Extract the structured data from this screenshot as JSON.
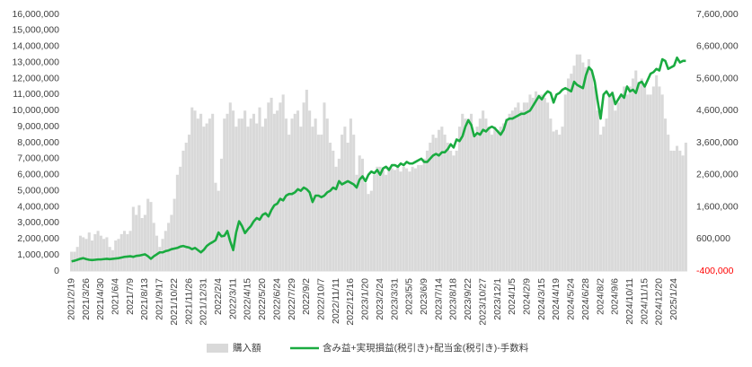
{
  "chart_data": {
    "type": "bar_line",
    "categories": [
      "2021/2/19",
      null,
      null,
      null,
      null,
      "2021/3/26",
      null,
      null,
      null,
      null,
      "2021/4/30",
      null,
      null,
      null,
      null,
      "2021/6/4",
      null,
      null,
      null,
      null,
      "2021/7/9",
      null,
      null,
      null,
      null,
      "2021/8/13",
      null,
      null,
      null,
      null,
      "2021/9/17",
      null,
      null,
      null,
      null,
      "2021/10/22",
      null,
      null,
      null,
      null,
      "2021/11/26",
      null,
      null,
      null,
      null,
      "2021/12/31",
      null,
      null,
      null,
      null,
      "2022/2/4",
      null,
      null,
      null,
      null,
      "2022/3/11",
      null,
      null,
      null,
      null,
      "2022/4/15",
      null,
      null,
      null,
      null,
      "2022/5/20",
      null,
      null,
      null,
      null,
      "2022/6/24",
      null,
      null,
      null,
      null,
      "2022/7/29",
      null,
      null,
      null,
      null,
      "2022/9/2",
      null,
      null,
      null,
      null,
      "2022/10/7",
      null,
      null,
      null,
      null,
      "2022/11/11",
      null,
      null,
      null,
      null,
      "2022/12/16",
      null,
      null,
      null,
      null,
      "2023/1/20",
      null,
      null,
      null,
      null,
      "2023/2/24",
      null,
      null,
      null,
      null,
      "2023/3/31",
      null,
      null,
      null,
      null,
      "2023/5/5",
      null,
      null,
      null,
      null,
      "2023/6/9",
      null,
      null,
      null,
      null,
      "2023/7/14",
      null,
      null,
      null,
      null,
      "2023/8/18",
      null,
      null,
      null,
      null,
      "2023/9/22",
      null,
      null,
      null,
      null,
      "2023/10/27",
      null,
      null,
      null,
      null,
      "2023/12/1",
      null,
      null,
      null,
      null,
      "2024/1/5",
      null,
      null,
      null,
      null,
      "2024/2/9",
      null,
      null,
      null,
      null,
      "2024/3/15",
      null,
      null,
      null,
      null,
      "2024/4/19",
      null,
      null,
      null,
      null,
      "2024/5/24",
      null,
      null,
      null,
      null,
      "2024/6/28",
      null,
      null,
      null,
      null,
      "2024/8/2",
      null,
      null,
      null,
      null,
      "2024/9/6",
      null,
      null,
      null,
      null,
      "2024/10/11",
      null,
      null,
      null,
      null,
      "2024/11/15",
      null,
      null,
      null,
      null,
      "2024/12/20",
      null,
      null,
      null,
      null,
      "2025/1/24",
      null,
      null,
      null,
      null
    ],
    "series": [
      {
        "name": "購入額",
        "color": "#d9d9d9",
        "type": "bar",
        "values": [
          1200000,
          1200000,
          1500000,
          2200000,
          2100000,
          2000000,
          2400000,
          1900000,
          2300000,
          2500000,
          2200000,
          2000000,
          2100000,
          1500000,
          1300000,
          1900000,
          2000000,
          2300000,
          2500000,
          2300000,
          2500000,
          4000000,
          3500000,
          4100000,
          3300000,
          3500000,
          4500000,
          4300000,
          3000000,
          2200000,
          1500000,
          2000000,
          2500000,
          3000000,
          3500000,
          4500000,
          6000000,
          6500000,
          7500000,
          8000000,
          8500000,
          10200000,
          10000000,
          9500000,
          9800000,
          9000000,
          9200000,
          9500000,
          9800000,
          5500000,
          5000000,
          7000000,
          9500000,
          9800000,
          10500000,
          10000000,
          9000000,
          9500000,
          9500000,
          10000000,
          9000000,
          9500000,
          9800000,
          9200000,
          10200000,
          9000000,
          9500000,
          10500000,
          10800000,
          9800000,
          10000000,
          10500000,
          11000000,
          9500000,
          8500000,
          9500000,
          9800000,
          10000000,
          9000000,
          10500000,
          11300000,
          10000000,
          9000000,
          9500000,
          8500000,
          8500000,
          10500000,
          9500000,
          8000000,
          7500000,
          6500000,
          7000000,
          8500000,
          9000000,
          8000000,
          9500000,
          8500000,
          6000000,
          7200000,
          7000000,
          5500000,
          4800000,
          5000000,
          6000000,
          6500000,
          6500000,
          6300000,
          6000000,
          6500000,
          6400000,
          6300000,
          6500000,
          6200000,
          6500000,
          6400000,
          6200000,
          6500000,
          6400000,
          6600000,
          6600000,
          7000000,
          7500000,
          8000000,
          8500000,
          8300000,
          8800000,
          9000000,
          8500000,
          8000000,
          7500000,
          7200000,
          7500000,
          9000000,
          9800000,
          9500000,
          9500000,
          9800000,
          8500000,
          9000000,
          9500000,
          10000000,
          9500000,
          9000000,
          8500000,
          9000000,
          8800000,
          9000000,
          9200000,
          9500000,
          9800000,
          10000000,
          10200000,
          10500000,
          10000000,
          10500000,
          10500000,
          11000000,
          10800000,
          11200000,
          11000000,
          11000000,
          10800000,
          10500000,
          9500000,
          8700000,
          8800000,
          8500000,
          9000000,
          11000000,
          12000000,
          12300000,
          12800000,
          13500000,
          13500000,
          13000000,
          12700000,
          13200000,
          12500000,
          11500000,
          10000000,
          8500000,
          9000000,
          9500000,
          11000000,
          11200000,
          10000000,
          10500000,
          11000000,
          11500000,
          11000000,
          11500000,
          12000000,
          12500000,
          11800000,
          12000000,
          11500000,
          11000000,
          11000000,
          11500000,
          12200000,
          11500000,
          11000000,
          9500000,
          8500000,
          7500000,
          7500000,
          7800000,
          7500000,
          7200000,
          8000000
        ]
      },
      {
        "name": "含み益+実現損益(税引き)+配当金(税引き)-手数料",
        "color": "#1aab40",
        "type": "line",
        "axis": "y2",
        "values": [
          -100000,
          -80000,
          -50000,
          -20000,
          0,
          -30000,
          -50000,
          -60000,
          -50000,
          -40000,
          -40000,
          -30000,
          -20000,
          -30000,
          -20000,
          -10000,
          0,
          20000,
          40000,
          50000,
          60000,
          40000,
          70000,
          80000,
          100000,
          120000,
          60000,
          -20000,
          60000,
          120000,
          180000,
          180000,
          220000,
          240000,
          280000,
          300000,
          320000,
          360000,
          380000,
          350000,
          330000,
          280000,
          320000,
          250000,
          180000,
          260000,
          380000,
          450000,
          500000,
          560000,
          800000,
          680000,
          700000,
          850000,
          520000,
          250000,
          800000,
          1150000,
          1000000,
          780000,
          900000,
          1000000,
          1150000,
          1250000,
          1200000,
          1350000,
          1400000,
          1300000,
          1500000,
          1650000,
          1700000,
          1850000,
          1800000,
          1950000,
          2000000,
          2000000,
          2050000,
          2150000,
          2100000,
          2200000,
          2150000,
          2050000,
          1750000,
          1950000,
          1950000,
          1900000,
          1950000,
          2050000,
          2100000,
          2200000,
          2150000,
          2400000,
          2300000,
          2350000,
          2400000,
          2350000,
          2300000,
          2200000,
          2450000,
          2550000,
          2400000,
          2600000,
          2700000,
          2650000,
          2750000,
          2600000,
          2800000,
          2850000,
          2750000,
          2900000,
          2900000,
          2850000,
          2950000,
          2900000,
          3000000,
          2950000,
          2950000,
          3000000,
          3050000,
          3100000,
          3000000,
          3000000,
          3100000,
          3200000,
          3250000,
          3200000,
          3300000,
          3300000,
          3400000,
          3550000,
          3450000,
          3700000,
          3650000,
          3800000,
          4100000,
          4300000,
          4150000,
          3800000,
          3900000,
          3850000,
          4000000,
          3950000,
          4050000,
          4100000,
          4050000,
          3950000,
          3850000,
          4000000,
          4300000,
          4350000,
          4350000,
          4400000,
          4450000,
          4500000,
          4500000,
          4550000,
          4600000,
          4750000,
          4900000,
          5050000,
          4950000,
          5100000,
          5200000,
          5150000,
          4850000,
          5100000,
          5150000,
          5250000,
          5300000,
          5250000,
          5200000,
          5500000,
          5400000,
          5350000,
          5300000,
          5700000,
          5950000,
          5850000,
          5500000,
          4900000,
          4350000,
          5100000,
          5200000,
          5050000,
          5150000,
          4800000,
          4950000,
          5100000,
          5000000,
          5350000,
          5200000,
          5250000,
          5150000,
          5450000,
          5500000,
          5350000,
          5550000,
          5750000,
          5800000,
          5900000,
          5850000,
          6200000,
          6150000,
          5900000,
          5950000,
          6000000,
          6250000,
          6100000,
          6150000,
          6150000
        ]
      }
    ],
    "ylim": [
      0,
      16000000
    ],
    "yticks": [
      {
        "value": 0,
        "label": "0"
      },
      {
        "value": 1000000,
        "label": "1,000,000"
      },
      {
        "value": 2000000,
        "label": "2,000,000"
      },
      {
        "value": 3000000,
        "label": "3,000,000"
      },
      {
        "value": 4000000,
        "label": "4,000,000"
      },
      {
        "value": 5000000,
        "label": "5,000,000"
      },
      {
        "value": 6000000,
        "label": "6,000,000"
      },
      {
        "value": 7000000,
        "label": "7,000,000"
      },
      {
        "value": 8000000,
        "label": "8,000,000"
      },
      {
        "value": 9000000,
        "label": "9,000,000"
      },
      {
        "value": 10000000,
        "label": "10,000,000"
      },
      {
        "value": 11000000,
        "label": "11,000,000"
      },
      {
        "value": 12000000,
        "label": "12,000,000"
      },
      {
        "value": 13000000,
        "label": "13,000,000"
      },
      {
        "value": 14000000,
        "label": "14,000,000"
      },
      {
        "value": 15000000,
        "label": "15,000,000"
      },
      {
        "value": 16000000,
        "label": "16,000,000"
      }
    ],
    "y2lim": [
      -400000,
      7600000
    ],
    "y2ticks": [
      {
        "value": -400000,
        "label": "-400,000"
      },
      {
        "value": 600000,
        "label": "600,000"
      },
      {
        "value": 1600000,
        "label": "1,600,000"
      },
      {
        "value": 2600000,
        "label": "2,600,000"
      },
      {
        "value": 3600000,
        "label": "3,600,000"
      },
      {
        "value": 4600000,
        "label": "4,600,000"
      },
      {
        "value": 5600000,
        "label": "5,600,000"
      },
      {
        "value": 6600000,
        "label": "6,600,000"
      },
      {
        "value": 7600000,
        "label": "7,600,000"
      }
    ],
    "y2tick_color": "#ff0000",
    "legend": "bottom"
  }
}
